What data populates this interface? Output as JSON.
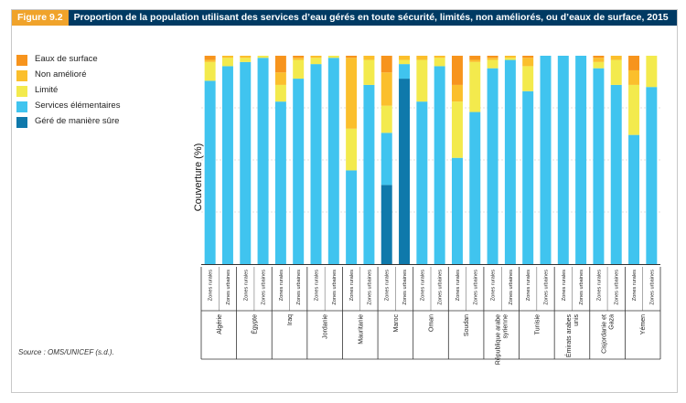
{
  "header": {
    "figure_label": "Figure 9.2",
    "title": "Proportion de la population utilisant des services d’eau gérés en toute sécurité, limités, non améliorés, ou d’eaux de surface, 2015"
  },
  "colors": {
    "Eaux de surface": "#f7941d",
    "Non amélioré": "#fbbf2c",
    "Limité": "#f3ea4d",
    "Services élémentaires": "#40c4ef",
    "Géré de manière sûre": "#0f79ab"
  },
  "source": "Source : OMS/UNICEF (s.d.).",
  "chart_data": {
    "type": "bar",
    "stacked": true,
    "ylabel": "Couverture (%)",
    "ylim": [
      0,
      100
    ],
    "y_ticks_shown": false,
    "grid": "horizontal dashed",
    "legend_position": "left",
    "categories": [
      "Algérie — Zones rurales",
      "Algérie — Zones urbaines",
      "Égypte — Zones rurales",
      "Égypte — Zones urbaines",
      "Iraq — Zones rurales",
      "Iraq — Zones urbaines",
      "Jordanie — Zones rurales",
      "Jordanie — Zones urbaines",
      "Mauritanie — Zones rurales",
      "Mauritanie — Zones urbaines",
      "Maroc — Zones rurales",
      "Maroc — Zones urbaines",
      "Oman — Zones rurales",
      "Oman — Zones urbaines",
      "Soudan — Zones rurales",
      "Soudan — Zones urbaines",
      "République arabe syrienne — Zones rurales",
      "République arabe syrienne — Zones urbaines",
      "Tunisie — Zones rurales",
      "Tunisie — Zones urbaines",
      "Émirats arabes unis — Zones rurales",
      "Émirats arabes unis — Zones urbaines",
      "Cisjordanie et Gaza — Zones rurales",
      "Cisjordanie et Gaza — Zones urbaines",
      "Yémen — Zones rurales",
      "Yémen — Zones urbaines"
    ],
    "groups": [
      {
        "country": "Algérie",
        "bars": [
          {
            "zone": "Zones rurales",
            "values": [
              0,
              88,
              9,
              1,
              2
            ]
          },
          {
            "zone": "Zones urbaines",
            "values": [
              0,
              95,
              4,
              1,
              0
            ]
          }
        ]
      },
      {
        "country": "Égypte",
        "bars": [
          {
            "zone": "Zones rurales",
            "values": [
              0,
              97,
              2,
              1,
              0
            ]
          },
          {
            "zone": "Zones urbaines",
            "values": [
              0,
              99,
              1,
              0,
              0
            ]
          }
        ]
      },
      {
        "country": "Iraq",
        "bars": [
          {
            "zone": "Zones rurales",
            "values": [
              0,
              78,
              8,
              6,
              8
            ]
          },
          {
            "zone": "Zones urbaines",
            "values": [
              0,
              89,
              9,
              1,
              1
            ]
          }
        ]
      },
      {
        "country": "Jordanie",
        "bars": [
          {
            "zone": "Zones rurales",
            "values": [
              0,
              96,
              3,
              1,
              0
            ]
          },
          {
            "zone": "Zones urbaines",
            "values": [
              0,
              99,
              1,
              0,
              0
            ]
          }
        ]
      },
      {
        "country": "Mauritanie",
        "bars": [
          {
            "zone": "Zones rurales",
            "values": [
              0,
              45,
              20,
              34,
              1
            ]
          },
          {
            "zone": "Zones urbaines",
            "values": [
              0,
              86,
              12,
              2,
              0
            ]
          }
        ]
      },
      {
        "country": "Maroc",
        "bars": [
          {
            "zone": "Zones rurales",
            "values": [
              38,
              25,
              13,
              16,
              8
            ]
          },
          {
            "zone": "Zones urbaines",
            "values": [
              89,
              7,
              2,
              2,
              0
            ]
          }
        ]
      },
      {
        "country": "Oman",
        "bars": [
          {
            "zone": "Zones rurales",
            "values": [
              0,
              78,
              20,
              2,
              0
            ]
          },
          {
            "zone": "Zones urbaines",
            "values": [
              0,
              95,
              4,
              1,
              0
            ]
          }
        ]
      },
      {
        "country": "Soudan",
        "bars": [
          {
            "zone": "Zones rurales",
            "values": [
              0,
              51,
              27,
              8,
              14
            ]
          },
          {
            "zone": "Zones urbaines",
            "values": [
              0,
              73,
              24,
              1,
              2
            ]
          }
        ]
      },
      {
        "country": "République arabe syrienne",
        "bars": [
          {
            "zone": "Zones rurales",
            "values": [
              0,
              94,
              4,
              1,
              1
            ]
          },
          {
            "zone": "Zones urbaines",
            "values": [
              0,
              98,
              1,
              1,
              0
            ]
          }
        ]
      },
      {
        "country": "Tunisie",
        "bars": [
          {
            "zone": "Zones rurales",
            "values": [
              0,
              83,
              12,
              4,
              1
            ]
          },
          {
            "zone": "Zones urbaines",
            "values": [
              0,
              100,
              0,
              0,
              0
            ]
          }
        ]
      },
      {
        "country": "Émirats arabes unis",
        "bars": [
          {
            "zone": "Zones rurales",
            "values": [
              0,
              100,
              0,
              0,
              0
            ]
          },
          {
            "zone": "Zones urbaines",
            "values": [
              0,
              100,
              0,
              0,
              0
            ]
          }
        ]
      },
      {
        "country": "Cisjordanie et Gaza",
        "bars": [
          {
            "zone": "Zones rurales",
            "values": [
              0,
              94,
              3,
              2,
              1
            ]
          },
          {
            "zone": "Zones urbaines",
            "values": [
              0,
              86,
              12,
              2,
              0
            ]
          }
        ]
      },
      {
        "country": "Yémen",
        "bars": [
          {
            "zone": "Zones rurales",
            "values": [
              0,
              62,
              24,
              7,
              7
            ]
          },
          {
            "zone": "Zones urbaines",
            "values": [
              0,
              85,
              15,
              0,
              0
            ]
          }
        ]
      }
    ],
    "series": [
      {
        "name": "Géré de manière sûre"
      },
      {
        "name": "Services élémentaires"
      },
      {
        "name": "Limité"
      },
      {
        "name": "Non amélioré"
      },
      {
        "name": "Eaux de surface"
      }
    ],
    "legend_order": [
      "Eaux de surface",
      "Non amélioré",
      "Limité",
      "Services élémentaires",
      "Géré de manière sûre"
    ]
  }
}
